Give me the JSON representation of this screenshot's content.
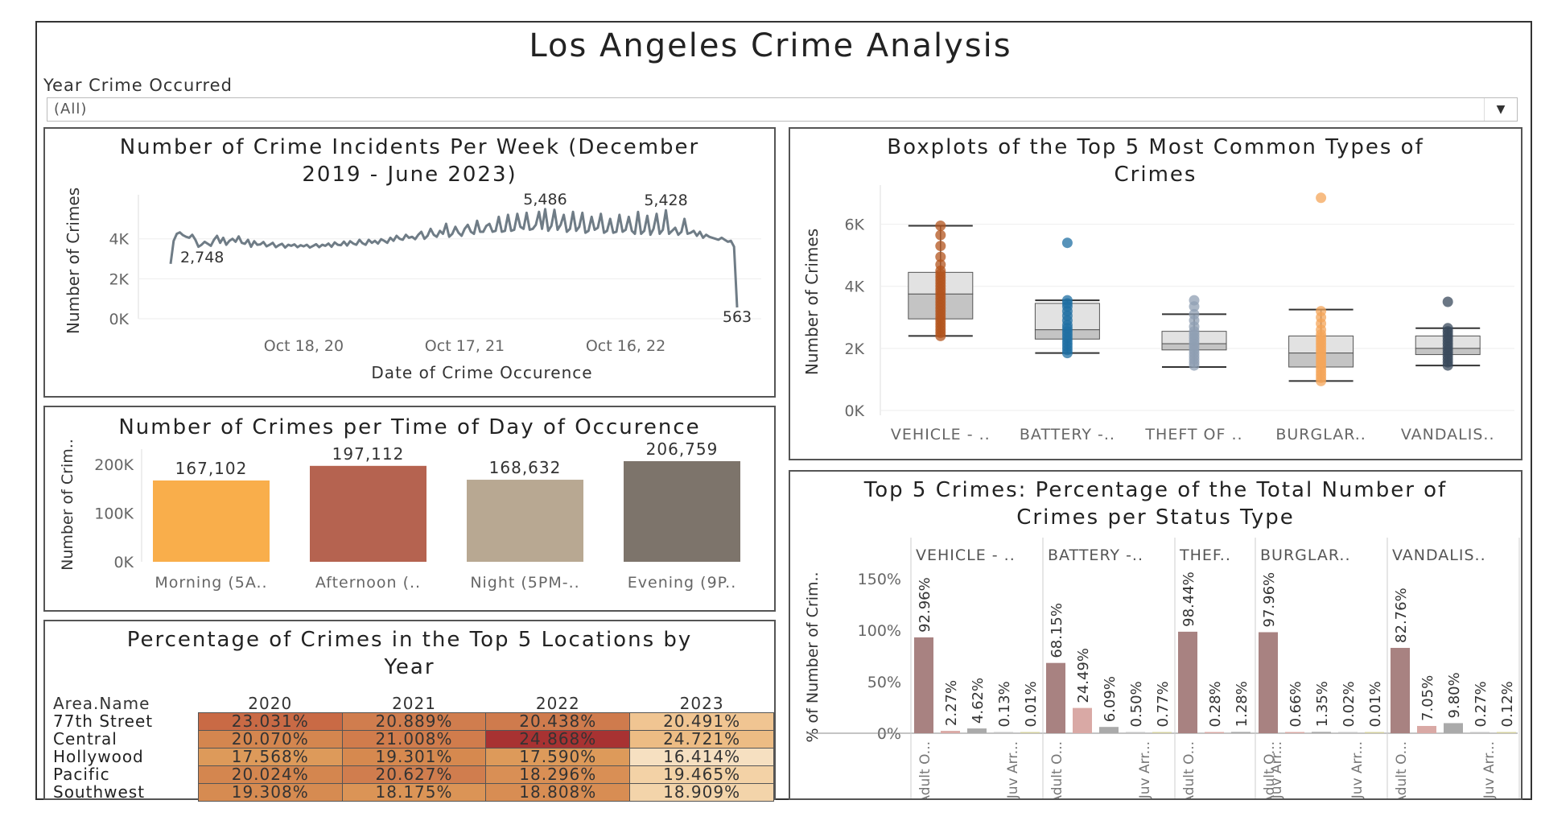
{
  "dashboard": {
    "title": "Los Angeles Crime Analysis",
    "filter": {
      "label": "Year Crime Occurred",
      "value": "(All)"
    }
  },
  "weekly": {
    "title_line1": "Number of Crime Incidents Per Week  (December",
    "title_line2": "2019 - June 2023)",
    "ylabel": "Number of Crimes",
    "xlabel": "Date of Crime Occurence"
  },
  "boxplots": {
    "title_line1": "Boxplots of the Top 5 Most Common Types of",
    "title_line2": "Crimes",
    "ylabel": "Number of Crimes"
  },
  "timeofday": {
    "title": "Number of Crimes per Time of Day of Occurence",
    "ylabel": "Number of Crim.."
  },
  "status": {
    "title_line1": "Top 5 Crimes: Percentage of the Total Number of",
    "title_line2": "Crimes per Status Type",
    "ylabel": "% of Number of Crim.."
  },
  "locations": {
    "title_line1": "Percentage of Crimes in the Top 5  Locations by",
    "title_line2": "Year",
    "row_header": "Area.Name"
  },
  "chart_data": [
    {
      "id": "weekly",
      "type": "line",
      "title": "Number of Crime Incidents Per Week  (December 2019 - June 2023)",
      "xlabel": "Date of Crime Occurence",
      "ylabel": "Number of Crimes",
      "yticks": [
        {
          "v": 0,
          "label": "0K"
        },
        {
          "v": 2000,
          "label": "2K"
        },
        {
          "v": 4000,
          "label": "4K"
        }
      ],
      "xticks": [
        {
          "week": 43,
          "label": "Oct 18, 20"
        },
        {
          "week": 95,
          "label": "Oct 17, 21"
        },
        {
          "week": 147,
          "label": "Oct 16, 22"
        }
      ],
      "ylim": [
        0,
        5800
      ],
      "x_weeks": 184,
      "grid": true,
      "annotations": [
        {
          "week": 0,
          "value": 2748,
          "label": "2,748"
        },
        {
          "week": 121,
          "value": 5486,
          "label": "5,486"
        },
        {
          "week": 160,
          "value": 5428,
          "label": "5,428"
        },
        {
          "week": 183,
          "value": 563,
          "label": "563"
        }
      ],
      "values": [
        2748,
        3900,
        4250,
        4320,
        4180,
        4100,
        4050,
        4200,
        3950,
        3600,
        3700,
        3850,
        3750,
        3650,
        3950,
        4150,
        3800,
        4050,
        3700,
        3900,
        4000,
        3850,
        4120,
        3800,
        3750,
        3950,
        3600,
        3880,
        3700,
        3720,
        3840,
        3620,
        3700,
        3800,
        3580,
        3680,
        3750,
        3560,
        3700,
        3650,
        3720,
        3580,
        3680,
        3620,
        3700,
        3560,
        3640,
        3730,
        3580,
        3700,
        3650,
        3760,
        3600,
        3820,
        3700,
        3680,
        3860,
        3660,
        3880,
        3760,
        3700,
        3950,
        3780,
        3700,
        3950,
        3800,
        3900,
        3760,
        3980,
        3900,
        3800,
        4050,
        3900,
        4150,
        4000,
        3950,
        4200,
        4050,
        4100,
        3980,
        4200,
        4350,
        4000,
        4150,
        4500,
        4200,
        4100,
        4400,
        4250,
        4750,
        4100,
        4250,
        4600,
        4300,
        4150,
        4500,
        4700,
        4350,
        4250,
        4900,
        4350,
        4350,
        4650,
        4750,
        4350,
        4400,
        5100,
        4350,
        4400,
        5200,
        4400,
        4450,
        5250,
        4600,
        4500,
        5300,
        4450,
        4500,
        4700,
        5350,
        4500,
        5486,
        4400,
        4650,
        5450,
        4450,
        4700,
        5200,
        4350,
        4500,
        5350,
        4400,
        4600,
        5300,
        4300,
        4400,
        5100,
        4450,
        4550,
        5250,
        4300,
        4400,
        5000,
        4300,
        4350,
        5200,
        4350,
        4450,
        5100,
        4400,
        4250,
        5350,
        4250,
        4400,
        5150,
        4200,
        4500,
        5250,
        4250,
        4450,
        5428,
        4250,
        4400,
        4550,
        4200,
        4350,
        5000,
        4250,
        4300,
        4400,
        4150,
        4350,
        4050,
        4200,
        4100,
        4050,
        4000,
        3950,
        4050,
        3950,
        3850,
        3900,
        3600,
        563
      ]
    },
    {
      "id": "boxplots",
      "type": "boxplot",
      "title": "Boxplots of the Top 5 Most Common Types of Crimes",
      "ylabel": "Number of Crimes",
      "ylim": [
        0,
        7000
      ],
      "yticks": [
        {
          "v": 0,
          "label": "0K"
        },
        {
          "v": 2000,
          "label": "2K"
        },
        {
          "v": 4000,
          "label": "4K"
        },
        {
          "v": 6000,
          "label": "6K"
        }
      ],
      "grid": true,
      "series": [
        {
          "name": "VEHICLE - ..",
          "color": "#b3541e",
          "whisker_low": 2400,
          "q1": 2950,
          "median": 3750,
          "q3": 4450,
          "whisker_high": 5950,
          "points": [
            2400,
            2500,
            2600,
            2700,
            2800,
            2900,
            3000,
            3100,
            3200,
            3300,
            3400,
            3500,
            3600,
            3700,
            3800,
            3900,
            4000,
            4100,
            4200,
            4300,
            4400,
            4500,
            4700,
            4950,
            5300,
            5650,
            5950
          ]
        },
        {
          "name": "BATTERY -..",
          "color": "#1f6fa3",
          "whisker_low": 1850,
          "q1": 2300,
          "median": 2600,
          "q3": 3450,
          "whisker_high": 3550,
          "points": [
            1850,
            1950,
            2050,
            2150,
            2250,
            2350,
            2450,
            2550,
            2650,
            2750,
            2900,
            3050,
            3200,
            3350,
            3450,
            3550,
            5400
          ]
        },
        {
          "name": "THEFT OF ..",
          "color": "#8f9fb3",
          "whisker_low": 1400,
          "q1": 1950,
          "median": 2150,
          "q3": 2550,
          "whisker_high": 3100,
          "points": [
            1450,
            1550,
            1650,
            1750,
            1850,
            1950,
            2050,
            2150,
            2250,
            2350,
            2450,
            2550,
            2700,
            2900,
            3100,
            3350,
            3550
          ]
        },
        {
          "name": "BURGLAR..",
          "color": "#f4a65a",
          "whisker_low": 950,
          "q1": 1400,
          "median": 1850,
          "q3": 2400,
          "whisker_high": 3250,
          "points": [
            950,
            1050,
            1150,
            1250,
            1350,
            1450,
            1550,
            1650,
            1750,
            1850,
            1950,
            2050,
            2150,
            2250,
            2350,
            2450,
            2600,
            2800,
            3000,
            3200,
            6850
          ]
        },
        {
          "name": "VANDALIS..",
          "color": "#3a4a5c",
          "whisker_low": 1450,
          "q1": 1800,
          "median": 2000,
          "q3": 2400,
          "whisker_high": 2650,
          "points": [
            1450,
            1550,
            1650,
            1750,
            1850,
            1950,
            2050,
            2150,
            2250,
            2350,
            2450,
            2550,
            2650,
            3500
          ]
        }
      ]
    },
    {
      "id": "timeofday",
      "type": "bar",
      "title": "Number of Crimes per Time of Day of Occurence",
      "ylabel": "Number of Crim..",
      "categories": [
        "Morning (5A..",
        "Afternoon (..",
        "Night (5PM-..",
        "Evening (9P.."
      ],
      "values": [
        167102,
        197112,
        168632,
        206759
      ],
      "labels": [
        "167,102",
        "197,112",
        "168,632",
        "206,759"
      ],
      "colors": [
        "#f9ae4b",
        "#b56350",
        "#b8a892",
        "#7d746b"
      ],
      "ylim": [
        0,
        215000
      ],
      "yticks": [
        {
          "v": 0,
          "label": "0K"
        },
        {
          "v": 100000,
          "label": "100K"
        },
        {
          "v": 200000,
          "label": "200K"
        }
      ]
    },
    {
      "id": "status",
      "type": "bar",
      "title": "Top 5 Crimes: Percentage of the Total Number of Crimes per Status Type",
      "ylabel": "% of Number of Crim..",
      "ylim": [
        0,
        160
      ],
      "yticks": [
        {
          "v": 0,
          "label": "0%"
        },
        {
          "v": 50,
          "label": "50%"
        },
        {
          "v": 100,
          "label": "100%"
        },
        {
          "v": 150,
          "label": "150%"
        }
      ],
      "status_colors": [
        "#a88281",
        "#d9a9a5",
        "#aaaaaa",
        "#c4c4c4",
        "#d4d0a0"
      ],
      "axis_labels": [
        "Adult O...",
        "Juv Arr..."
      ],
      "groups": [
        {
          "name": "VEHICLE - ..",
          "values": [
            92.96,
            2.27,
            4.62,
            0.13,
            0.01
          ],
          "labels": [
            "92.96%",
            "2.27%",
            "4.62%",
            "0.13%",
            "0.01%"
          ]
        },
        {
          "name": "BATTERY -..",
          "values": [
            68.15,
            24.49,
            6.09,
            0.5,
            0.77
          ],
          "labels": [
            "68.15%",
            "24.49%",
            "6.09%",
            "0.50%",
            "0.77%"
          ]
        },
        {
          "name": "THEF..",
          "values": [
            98.44,
            0.28,
            1.28
          ],
          "labels": [
            "98.44%",
            "0.28%",
            "1.28%"
          ]
        },
        {
          "name": "BURGLAR..",
          "values": [
            97.96,
            0.66,
            1.35,
            0.02,
            0.01
          ],
          "labels": [
            "97.96%",
            "0.66%",
            "1.35%",
            "0.02%",
            "0.01%"
          ]
        },
        {
          "name": "VANDALIS..",
          "values": [
            82.76,
            7.05,
            9.8,
            0.27,
            0.12
          ],
          "labels": [
            "82.76%",
            "7.05%",
            "9.80%",
            "0.27%",
            "0.12%"
          ]
        }
      ]
    },
    {
      "id": "locations",
      "type": "heatmap",
      "title": "Percentage of Crimes in the Top 5  Locations by Year",
      "row_header": "Area.Name",
      "columns": [
        "2020",
        "2021",
        "2022",
        "2023"
      ],
      "rows": [
        {
          "name": "77th Street",
          "values": [
            23.031,
            20.889,
            20.438,
            20.491
          ],
          "labels": [
            "23.031%",
            "20.889%",
            "20.438%",
            "20.491%"
          ]
        },
        {
          "name": "Central",
          "values": [
            20.07,
            21.008,
            24.868,
            24.721
          ],
          "labels": [
            "20.070%",
            "21.008%",
            "24.868%",
            "24.721%"
          ]
        },
        {
          "name": "Hollywood",
          "values": [
            17.568,
            19.301,
            17.59,
            16.414
          ],
          "labels": [
            "17.568%",
            "19.301%",
            "17.590%",
            "16.414%"
          ]
        },
        {
          "name": "Pacific",
          "values": [
            20.024,
            20.627,
            18.296,
            19.465
          ],
          "labels": [
            "20.024%",
            "20.627%",
            "18.296%",
            "19.465%"
          ]
        },
        {
          "name": "Southwest",
          "values": [
            19.308,
            18.175,
            18.808,
            18.909
          ],
          "labels": [
            "19.308%",
            "18.175%",
            "18.808%",
            "18.909%"
          ]
        }
      ],
      "colors": [
        [
          "#c96a45",
          "#d07d4e",
          "#cf7b4d",
          "#f0c592"
        ],
        [
          "#d4864f",
          "#d17c4c",
          "#a83232",
          "#edbc84"
        ],
        [
          "#dd9a5a",
          "#d6894f",
          "#dd9a5a",
          "#f6e0c1"
        ],
        [
          "#d4864f",
          "#d07d4e",
          "#d98f55",
          "#f3d2a6"
        ],
        [
          "#d68b51",
          "#db9456",
          "#d88d53",
          "#f3d4aa"
        ]
      ]
    }
  ]
}
